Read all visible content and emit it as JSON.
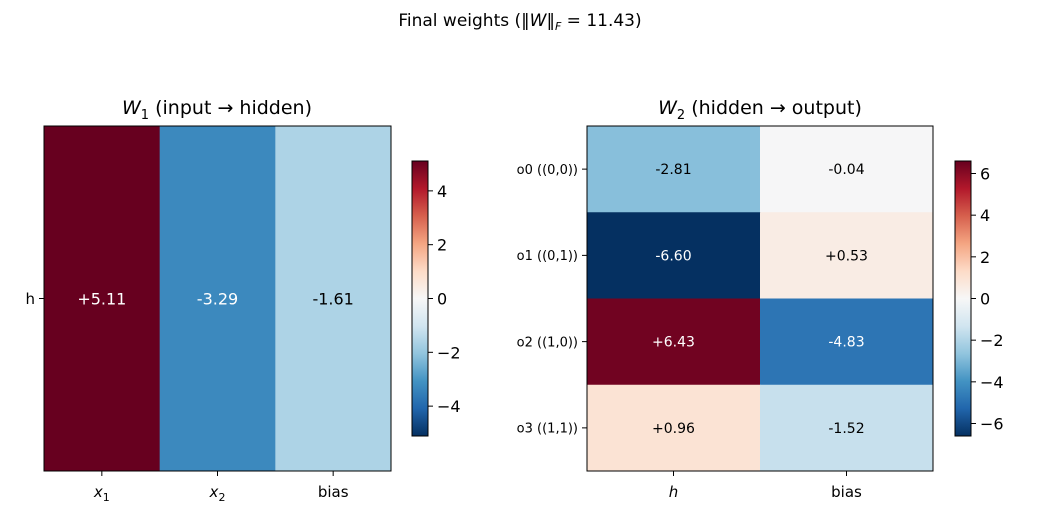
{
  "figure": {
    "title_prefix": "Final weights  (",
    "title_norm_symbol": "‖W‖",
    "title_norm_subscript": "F",
    "title_suffix": " = 11.43)"
  },
  "chart_data": [
    {
      "type": "heatmap",
      "title_symbol": "W",
      "title_subscript": "1",
      "title_rest": "  (input → hidden)",
      "rows": [
        "h"
      ],
      "cols": [
        {
          "symbol": "x",
          "subscript": "1"
        },
        {
          "symbol": "x",
          "subscript": "2"
        },
        {
          "symbol": "",
          "subscript": "",
          "text": "bias"
        }
      ],
      "values": [
        [
          5.11,
          -3.29,
          -1.61
        ]
      ],
      "cell_labels": [
        [
          "+5.11",
          "-3.29",
          "-1.61"
        ]
      ],
      "colormap": "RdBu_r",
      "vlim": [
        -5.11,
        5.11
      ],
      "colorbar_ticks": [
        4,
        2,
        0,
        -2,
        -4
      ],
      "colorbar_tick_labels": [
        "4",
        "2",
        "0",
        "−2",
        "−4"
      ]
    },
    {
      "type": "heatmap",
      "title_symbol": "W",
      "title_subscript": "2",
      "title_rest": "  (hidden → output)",
      "rows": [
        "o0 ((0,0))",
        "o1 ((0,1))",
        "o2 ((1,0))",
        "o3 ((1,1))"
      ],
      "cols": [
        {
          "symbol": "h",
          "subscript": ""
        },
        {
          "symbol": "",
          "subscript": "",
          "text": "bias"
        }
      ],
      "values": [
        [
          -2.81,
          -0.04
        ],
        [
          -6.6,
          0.53
        ],
        [
          6.43,
          -4.83
        ],
        [
          0.96,
          -1.52
        ]
      ],
      "cell_labels": [
        [
          "-2.81",
          "-0.04"
        ],
        [
          "-6.60",
          "+0.53"
        ],
        [
          "+6.43",
          "-4.83"
        ],
        [
          "+0.96",
          "-1.52"
        ]
      ],
      "colormap": "RdBu_r",
      "vlim": [
        -6.6,
        6.6
      ],
      "colorbar_ticks": [
        6,
        4,
        2,
        0,
        -2,
        -4,
        -6
      ],
      "colorbar_tick_labels": [
        "6",
        "4",
        "2",
        "0",
        "−2",
        "−4",
        "−6"
      ]
    }
  ]
}
